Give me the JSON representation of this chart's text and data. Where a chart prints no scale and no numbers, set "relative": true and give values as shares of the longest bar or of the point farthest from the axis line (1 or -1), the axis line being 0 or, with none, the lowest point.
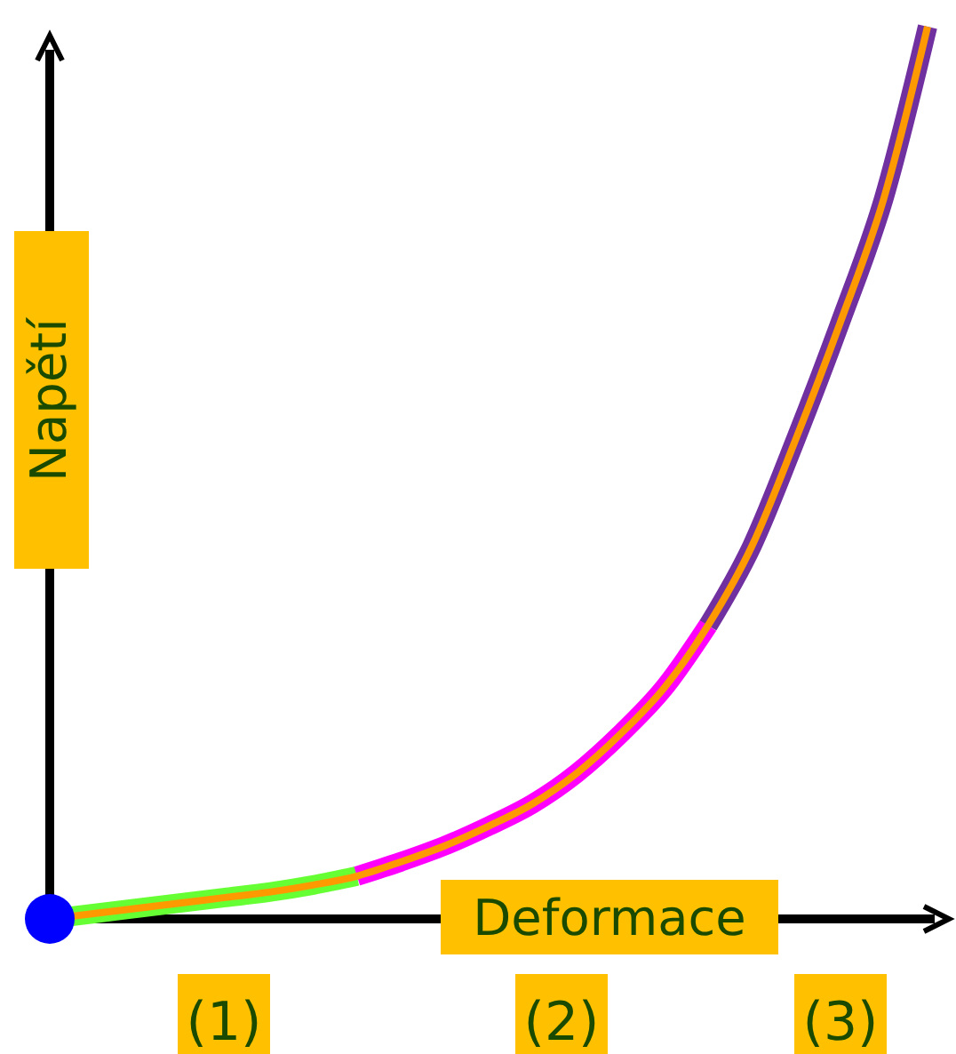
{
  "chart_data": {
    "type": "line",
    "relative": true,
    "xlabel": "Deformace",
    "ylabel": "Napětí",
    "legend": false,
    "categories": [
      null,
      null,
      null,
      null,
      null,
      null,
      null,
      null,
      null,
      null,
      null,
      null,
      null,
      null,
      null,
      null,
      null,
      null,
      null,
      null,
      null
    ],
    "series": [
      {
        "color": "#ff9900",
        "values": [
          0,
          0.006,
          0.012,
          0.018,
          0.024,
          0.03,
          0.038,
          0.048,
          0.064,
          0.082,
          0.104,
          0.129,
          0.163,
          0.207,
          0.259,
          0.329,
          0.418,
          0.538,
          0.667,
          0.807,
          1
        ]
      },
      {
        "color": "#66ff33",
        "values": [
          0,
          0.006,
          0.012,
          0.018,
          0.024,
          0.03,
          0.038,
          0.048,
          null,
          null,
          null,
          null,
          null,
          null,
          null,
          null,
          null,
          null,
          null,
          null,
          null
        ]
      },
      {
        "color": "#ff00ff",
        "values": [
          null,
          null,
          null,
          null,
          null,
          null,
          null,
          0.048,
          0.064,
          0.082,
          0.104,
          0.129,
          0.163,
          0.207,
          0.259,
          0.329,
          null,
          null,
          null,
          null,
          null
        ]
      },
      {
        "color": "#7030a0",
        "values": [
          null,
          null,
          null,
          null,
          null,
          null,
          null,
          null,
          null,
          null,
          null,
          null,
          null,
          null,
          null,
          0.329,
          0.418,
          0.538,
          0.667,
          0.807,
          1
        ]
      }
    ],
    "annotations": [
      "(1)",
      "(2)",
      "(3)"
    ]
  }
}
